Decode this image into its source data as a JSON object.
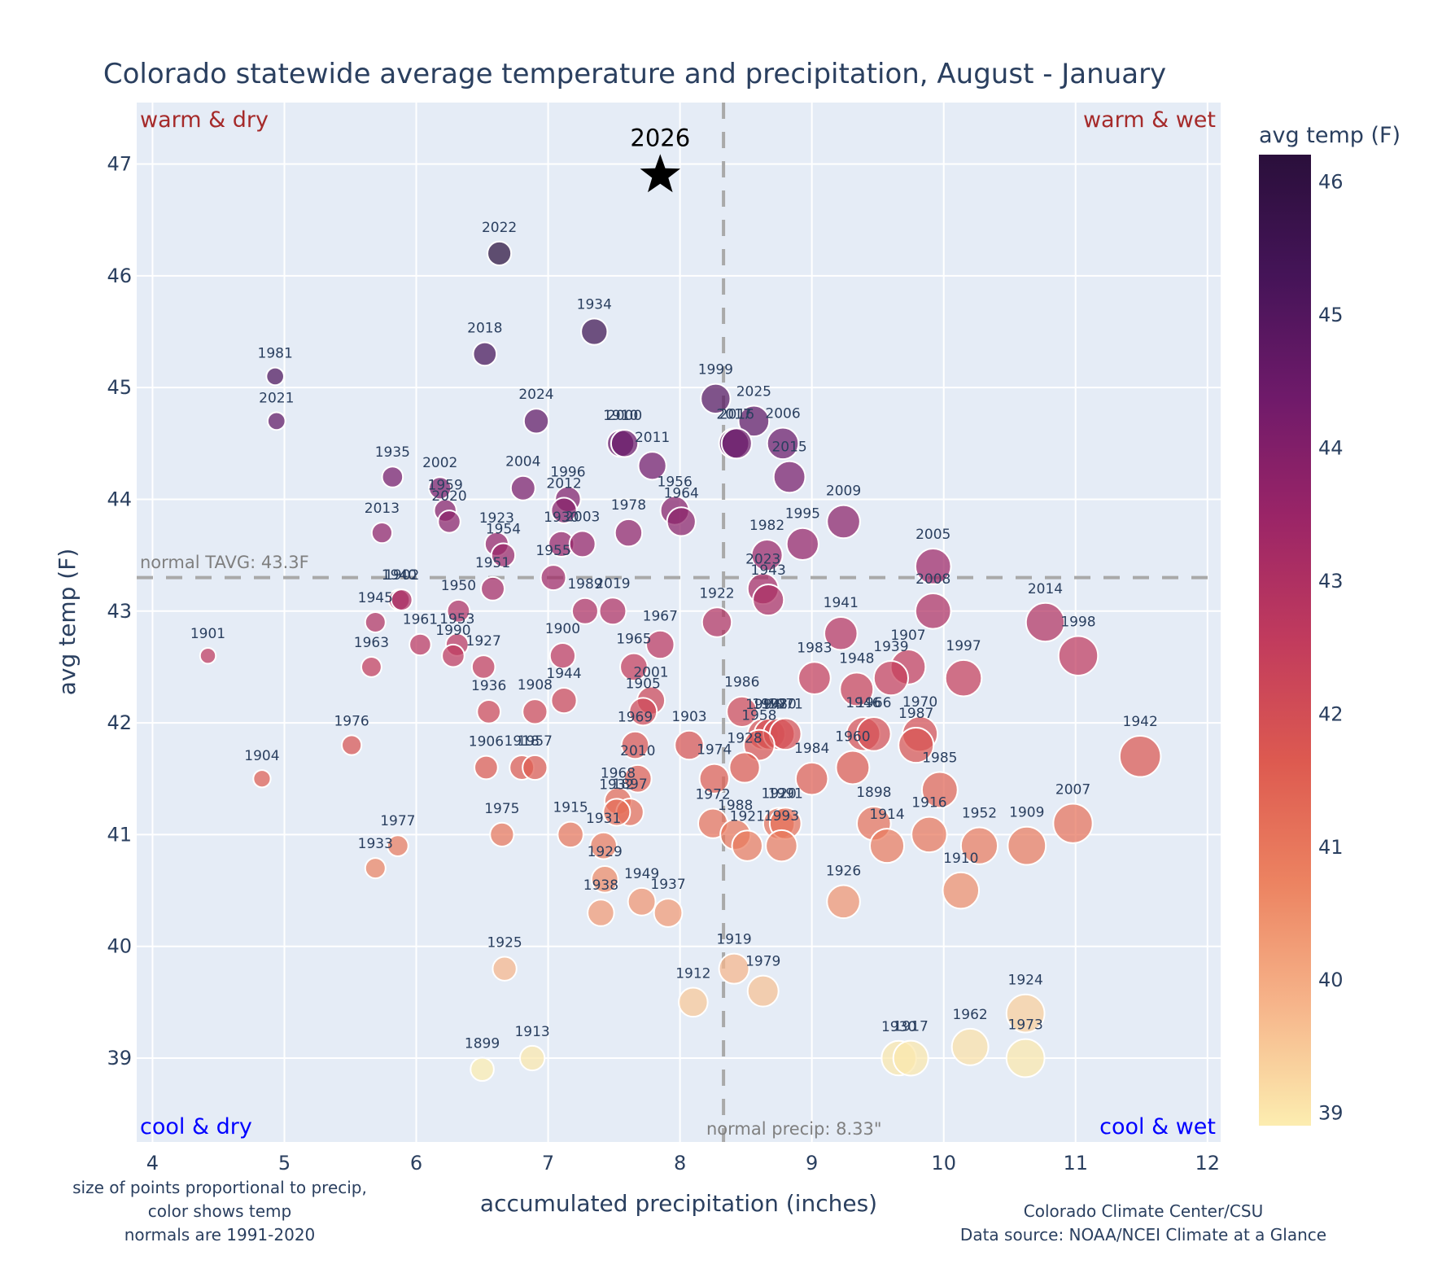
{
  "chart_data": {
    "type": "scatter",
    "title": "Colorado statewide average temperature and precipitation, August - January",
    "xlabel": "accumulated precipitation (inches)",
    "ylabel": "avg temp (F)",
    "xlim": [
      3.88,
      12.1
    ],
    "ylim": [
      38.25,
      47.55
    ],
    "xticks": [
      4,
      5,
      6,
      7,
      8,
      9,
      10,
      11,
      12
    ],
    "yticks": [
      39,
      40,
      41,
      42,
      43,
      44,
      45,
      46,
      47
    ],
    "grid": true,
    "colorbar": {
      "title": "avg temp (F)",
      "range": [
        38.9,
        46.2
      ],
      "ticks": [
        39,
        40,
        41,
        42,
        43,
        44,
        45,
        46
      ],
      "colorscale": [
        "#fcedb0",
        "#f6b48a",
        "#ec8361",
        "#dd5a50",
        "#c13b5d",
        "#9b2567",
        "#6f1a6a",
        "#451458",
        "#2a0f3b"
      ]
    },
    "normals": {
      "temp": 43.3,
      "temp_label": "normal TAVG: 43.3F",
      "precip": 8.33,
      "precip_label": "normal precip: 8.33\""
    },
    "quadrant_labels": {
      "top_left": "warm & dry",
      "top_right": "warm & wet",
      "bottom_left": "cool & dry",
      "bottom_right": "cool & wet"
    },
    "highlight": {
      "year": "2026",
      "precip": 7.85,
      "temp": 46.9,
      "marker": "star"
    },
    "points": [
      {
        "year": "2022",
        "precip": 6.63,
        "temp": 46.2
      },
      {
        "year": "1934",
        "precip": 7.35,
        "temp": 45.5
      },
      {
        "year": "2018",
        "precip": 6.52,
        "temp": 45.3
      },
      {
        "year": "1981",
        "precip": 4.93,
        "temp": 45.1
      },
      {
        "year": "2021",
        "precip": 4.94,
        "temp": 44.7
      },
      {
        "year": "2024",
        "precip": 6.91,
        "temp": 44.7
      },
      {
        "year": "1999",
        "precip": 8.27,
        "temp": 44.9
      },
      {
        "year": "2025",
        "precip": 8.56,
        "temp": 44.7
      },
      {
        "year": "1910",
        "precip": 7.55,
        "temp": 44.5
      },
      {
        "year": "2000",
        "precip": 7.58,
        "temp": 44.5
      },
      {
        "year": "2011",
        "precip": 7.79,
        "temp": 44.3
      },
      {
        "year": "2017",
        "precip": 8.41,
        "temp": 44.5
      },
      {
        "year": "2016",
        "precip": 8.43,
        "temp": 44.5
      },
      {
        "year": "2006",
        "precip": 8.78,
        "temp": 44.5
      },
      {
        "year": "2015",
        "precip": 8.83,
        "temp": 44.2
      },
      {
        "year": "1935",
        "precip": 5.82,
        "temp": 44.2
      },
      {
        "year": "2002",
        "precip": 6.18,
        "temp": 44.1
      },
      {
        "year": "1959",
        "precip": 6.22,
        "temp": 43.9
      },
      {
        "year": "2020",
        "precip": 6.25,
        "temp": 43.8
      },
      {
        "year": "2004",
        "precip": 6.81,
        "temp": 44.1
      },
      {
        "year": "1996",
        "precip": 7.15,
        "temp": 44.0
      },
      {
        "year": "2012",
        "precip": 7.12,
        "temp": 43.9
      },
      {
        "year": "1930",
        "precip": 7.1,
        "temp": 43.6
      },
      {
        "year": "2003",
        "precip": 7.26,
        "temp": 43.6
      },
      {
        "year": "1956",
        "precip": 7.96,
        "temp": 43.9
      },
      {
        "year": "1964",
        "precip": 8.01,
        "temp": 43.8
      },
      {
        "year": "1978",
        "precip": 7.61,
        "temp": 43.7
      },
      {
        "year": "2013",
        "precip": 5.74,
        "temp": 43.7
      },
      {
        "year": "2009",
        "precip": 9.24,
        "temp": 43.8
      },
      {
        "year": "1995",
        "precip": 8.93,
        "temp": 43.6
      },
      {
        "year": "1982",
        "precip": 8.66,
        "temp": 43.5
      },
      {
        "year": "2005",
        "precip": 9.92,
        "temp": 43.4
      },
      {
        "year": "1923",
        "precip": 6.61,
        "temp": 43.6
      },
      {
        "year": "1954",
        "precip": 6.66,
        "temp": 43.5
      },
      {
        "year": "1955",
        "precip": 7.04,
        "temp": 43.3
      },
      {
        "year": "1951",
        "precip": 6.58,
        "temp": 43.2
      },
      {
        "year": "2023",
        "precip": 8.63,
        "temp": 43.2
      },
      {
        "year": "1943",
        "precip": 8.67,
        "temp": 43.1
      },
      {
        "year": "1940",
        "precip": 5.87,
        "temp": 43.1
      },
      {
        "year": "1902",
        "precip": 5.89,
        "temp": 43.1
      },
      {
        "year": "1989",
        "precip": 7.28,
        "temp": 43.0
      },
      {
        "year": "2019",
        "precip": 7.49,
        "temp": 43.0
      },
      {
        "year": "2008",
        "precip": 9.92,
        "temp": 43.0
      },
      {
        "year": "1950",
        "precip": 6.32,
        "temp": 43.0
      },
      {
        "year": "1945",
        "precip": 5.69,
        "temp": 42.9
      },
      {
        "year": "1922",
        "precip": 8.28,
        "temp": 42.9
      },
      {
        "year": "2014",
        "precip": 10.77,
        "temp": 42.9
      },
      {
        "year": "1941",
        "precip": 9.22,
        "temp": 42.8
      },
      {
        "year": "1961",
        "precip": 6.03,
        "temp": 42.7
      },
      {
        "year": "1953",
        "precip": 6.31,
        "temp": 42.7
      },
      {
        "year": "1967",
        "precip": 7.85,
        "temp": 42.7
      },
      {
        "year": "1998",
        "precip": 11.02,
        "temp": 42.6
      },
      {
        "year": "1901",
        "precip": 4.42,
        "temp": 42.6
      },
      {
        "year": "1990",
        "precip": 6.28,
        "temp": 42.6
      },
      {
        "year": "1900",
        "precip": 7.11,
        "temp": 42.6
      },
      {
        "year": "1963",
        "precip": 5.66,
        "temp": 42.5
      },
      {
        "year": "1927",
        "precip": 6.51,
        "temp": 42.5
      },
      {
        "year": "1965",
        "precip": 7.65,
        "temp": 42.5
      },
      {
        "year": "1907",
        "precip": 9.73,
        "temp": 42.5
      },
      {
        "year": "1939",
        "precip": 9.6,
        "temp": 42.4
      },
      {
        "year": "1983",
        "precip": 9.02,
        "temp": 42.4
      },
      {
        "year": "1997",
        "precip": 10.15,
        "temp": 42.4
      },
      {
        "year": "1948",
        "precip": 9.34,
        "temp": 42.3
      },
      {
        "year": "1944",
        "precip": 7.12,
        "temp": 42.2
      },
      {
        "year": "2001",
        "precip": 7.78,
        "temp": 42.2
      },
      {
        "year": "1905",
        "precip": 7.72,
        "temp": 42.1
      },
      {
        "year": "1936",
        "precip": 6.55,
        "temp": 42.1
      },
      {
        "year": "1908",
        "precip": 6.9,
        "temp": 42.1
      },
      {
        "year": "1986",
        "precip": 8.47,
        "temp": 42.1
      },
      {
        "year": "1946",
        "precip": 9.39,
        "temp": 41.9
      },
      {
        "year": "1966",
        "precip": 9.47,
        "temp": 41.9
      },
      {
        "year": "1970",
        "precip": 9.82,
        "temp": 41.9
      },
      {
        "year": "1994",
        "precip": 8.63,
        "temp": 41.9
      },
      {
        "year": "1992",
        "precip": 8.68,
        "temp": 41.9
      },
      {
        "year": "1980",
        "precip": 8.75,
        "temp": 41.9
      },
      {
        "year": "1971",
        "precip": 8.8,
        "temp": 41.9
      },
      {
        "year": "1958",
        "precip": 8.6,
        "temp": 41.8
      },
      {
        "year": "1987",
        "precip": 9.79,
        "temp": 41.8
      },
      {
        "year": "1976",
        "precip": 5.51,
        "temp": 41.8
      },
      {
        "year": "1903",
        "precip": 8.07,
        "temp": 41.8
      },
      {
        "year": "1969",
        "precip": 7.66,
        "temp": 41.8
      },
      {
        "year": "1942",
        "precip": 11.49,
        "temp": 41.7
      },
      {
        "year": "1928",
        "precip": 8.49,
        "temp": 41.6
      },
      {
        "year": "1960",
        "precip": 9.31,
        "temp": 41.6
      },
      {
        "year": "1906",
        "precip": 6.53,
        "temp": 41.6
      },
      {
        "year": "1918",
        "precip": 6.8,
        "temp": 41.6
      },
      {
        "year": "1957",
        "precip": 6.9,
        "temp": 41.6
      },
      {
        "year": "1904",
        "precip": 4.83,
        "temp": 41.5
      },
      {
        "year": "1974",
        "precip": 8.26,
        "temp": 41.5
      },
      {
        "year": "1984",
        "precip": 9.0,
        "temp": 41.5
      },
      {
        "year": "1985",
        "precip": 9.97,
        "temp": 41.4
      },
      {
        "year": "2010",
        "precip": 7.68,
        "temp": 41.5
      },
      {
        "year": "1968",
        "precip": 7.53,
        "temp": 41.3
      },
      {
        "year": "1897",
        "precip": 7.62,
        "temp": 41.2
      },
      {
        "year": "1972",
        "precip": 8.25,
        "temp": 41.1
      },
      {
        "year": "1932",
        "precip": 7.52,
        "temp": 41.2
      },
      {
        "year": "1988",
        "precip": 8.42,
        "temp": 41.0
      },
      {
        "year": "1920",
        "precip": 8.75,
        "temp": 41.1
      },
      {
        "year": "1991",
        "precip": 8.8,
        "temp": 41.1
      },
      {
        "year": "1993",
        "precip": 8.77,
        "temp": 40.9
      },
      {
        "year": "1921",
        "precip": 8.51,
        "temp": 40.9
      },
      {
        "year": "1898",
        "precip": 9.47,
        "temp": 41.1
      },
      {
        "year": "1914",
        "precip": 9.57,
        "temp": 40.9
      },
      {
        "year": "1916",
        "precip": 9.89,
        "temp": 41.0
      },
      {
        "year": "1952",
        "precip": 10.27,
        "temp": 40.9
      },
      {
        "year": "1909",
        "precip": 10.63,
        "temp": 40.9
      },
      {
        "year": "2007",
        "precip": 10.98,
        "temp": 41.1
      },
      {
        "year": "1975",
        "precip": 6.65,
        "temp": 41.0
      },
      {
        "year": "1915",
        "precip": 7.17,
        "temp": 41.0
      },
      {
        "year": "1931",
        "precip": 7.42,
        "temp": 40.9
      },
      {
        "year": "1977",
        "precip": 5.86,
        "temp": 40.9
      },
      {
        "year": "1933",
        "precip": 5.69,
        "temp": 40.7
      },
      {
        "year": "1929",
        "precip": 7.43,
        "temp": 40.6
      },
      {
        "year": "1949",
        "precip": 7.71,
        "temp": 40.4
      },
      {
        "year": "1937",
        "precip": 7.91,
        "temp": 40.3
      },
      {
        "year": "1938",
        "precip": 7.4,
        "temp": 40.3
      },
      {
        "year": "1926",
        "precip": 9.24,
        "temp": 40.4
      },
      {
        "year": "1910b",
        "precip": 10.13,
        "temp": 40.5
      },
      {
        "year": "1925",
        "precip": 6.67,
        "temp": 39.8
      },
      {
        "year": "1919",
        "precip": 8.41,
        "temp": 39.8
      },
      {
        "year": "1979",
        "precip": 8.63,
        "temp": 39.6
      },
      {
        "year": "1912",
        "precip": 8.1,
        "temp": 39.5
      },
      {
        "year": "1924",
        "precip": 10.62,
        "temp": 39.4
      },
      {
        "year": "1962",
        "precip": 10.2,
        "temp": 39.1
      },
      {
        "year": "1930b",
        "precip": 9.66,
        "temp": 39.0
      },
      {
        "year": "1917",
        "precip": 9.75,
        "temp": 39.0
      },
      {
        "year": "1973",
        "precip": 10.62,
        "temp": 39.0
      },
      {
        "year": "1913",
        "precip": 6.88,
        "temp": 39.0
      },
      {
        "year": "1899",
        "precip": 6.5,
        "temp": 38.9
      }
    ],
    "notes": {
      "left": [
        "size of points proportional to precip,",
        "color shows temp",
        "normals are 1991-2020"
      ],
      "right": [
        "Colorado Climate Center/CSU",
        "Data source: NOAA/NCEI Climate at a Glance"
      ]
    }
  }
}
